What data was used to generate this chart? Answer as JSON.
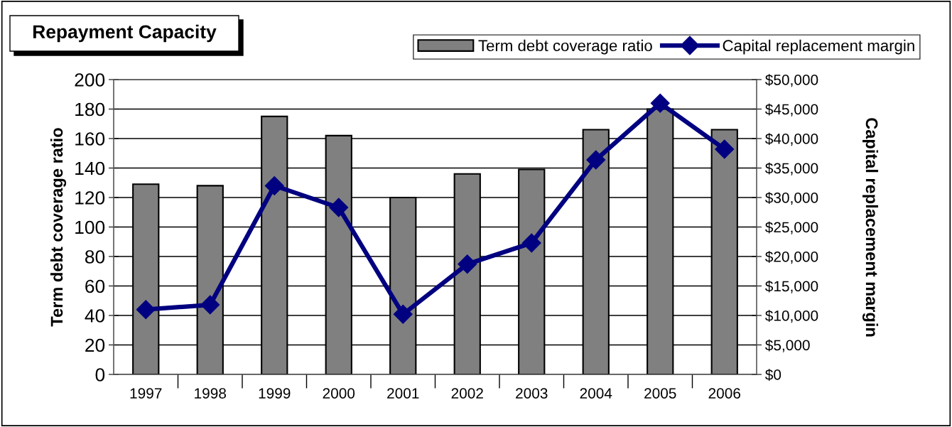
{
  "chart_data": {
    "type": "bar",
    "title": "Repayment Capacity",
    "ylabel": "Term debt coverage ratio",
    "y2label": "Capital replacement margin",
    "categories": [
      "1997",
      "1998",
      "1999",
      "2000",
      "2001",
      "2002",
      "2003",
      "2004",
      "2005",
      "2006"
    ],
    "series": [
      {
        "name": "Term debt coverage ratio",
        "color": "#808080",
        "values": [
          129,
          128,
          175,
          162,
          120,
          136,
          139,
          166,
          180,
          166
        ]
      },
      {
        "name": "Capital replacement margin",
        "type": "line",
        "axis": "y2",
        "color": "#000080",
        "marker": "diamond",
        "values": [
          11000,
          11800,
          32000,
          28300,
          10200,
          18700,
          22300,
          36400,
          46000,
          38200
        ]
      }
    ],
    "ylim": [
      0,
      200
    ],
    "yticks": [
      0,
      20,
      40,
      60,
      80,
      100,
      120,
      140,
      160,
      180,
      200
    ],
    "y2lim": [
      0,
      50000
    ],
    "y2ticks": [
      {
        "value": 0,
        "label": "$0"
      },
      {
        "value": 5000,
        "label": "$5,000"
      },
      {
        "value": 10000,
        "label": "$10,000"
      },
      {
        "value": 15000,
        "label": "$15,000"
      },
      {
        "value": 20000,
        "label": "$20,000"
      },
      {
        "value": 25000,
        "label": "$25,000"
      },
      {
        "value": 30000,
        "label": "$30,000"
      },
      {
        "value": 35000,
        "label": "$35,000"
      },
      {
        "value": 40000,
        "label": "$40,000"
      },
      {
        "value": 45000,
        "label": "$45,000"
      },
      {
        "value": 50000,
        "label": "$50,000"
      }
    ],
    "grid": "y",
    "legend": "top right"
  }
}
